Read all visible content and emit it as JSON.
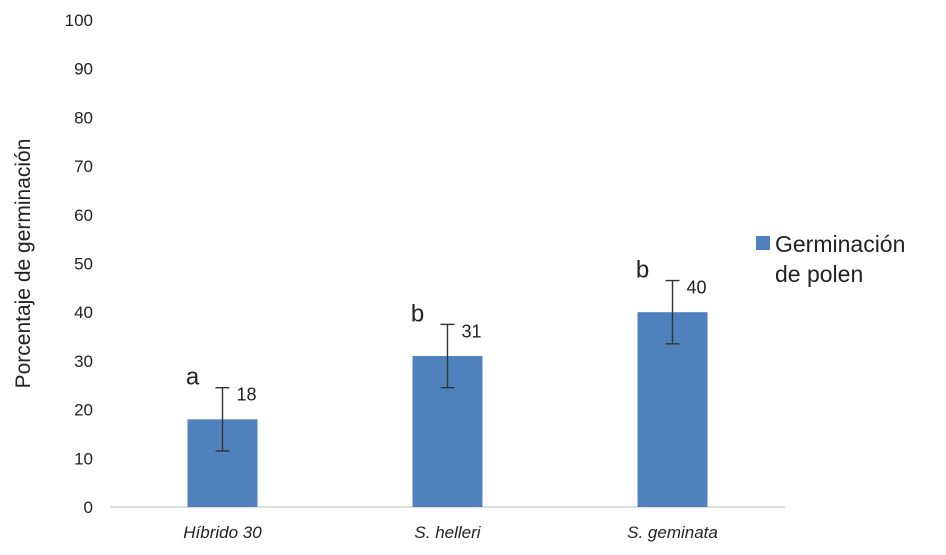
{
  "chart_data": {
    "type": "bar",
    "title": "",
    "xlabel": "",
    "ylabel": "Porcentaje de germinación",
    "ylim": [
      0,
      100
    ],
    "yticks": [
      0,
      10,
      20,
      30,
      40,
      50,
      60,
      70,
      80,
      90,
      100
    ],
    "grid": false,
    "categories": [
      "Híbrido 30",
      "S. helleri",
      "S. geminata"
    ],
    "series": [
      {
        "name": "Germinación de polen",
        "legend_lines": [
          "Germinación",
          "de polen"
        ],
        "color": "#4f81bd",
        "values": [
          18,
          31,
          40
        ],
        "value_labels": [
          "18",
          "31",
          "40"
        ],
        "error_low": [
          11.5,
          24.5,
          33.5
        ],
        "error_high": [
          24.5,
          37.5,
          46.5
        ],
        "significance": [
          "a",
          "b",
          "b"
        ]
      }
    ],
    "legend_position": "right",
    "category_label_style": "italic"
  }
}
